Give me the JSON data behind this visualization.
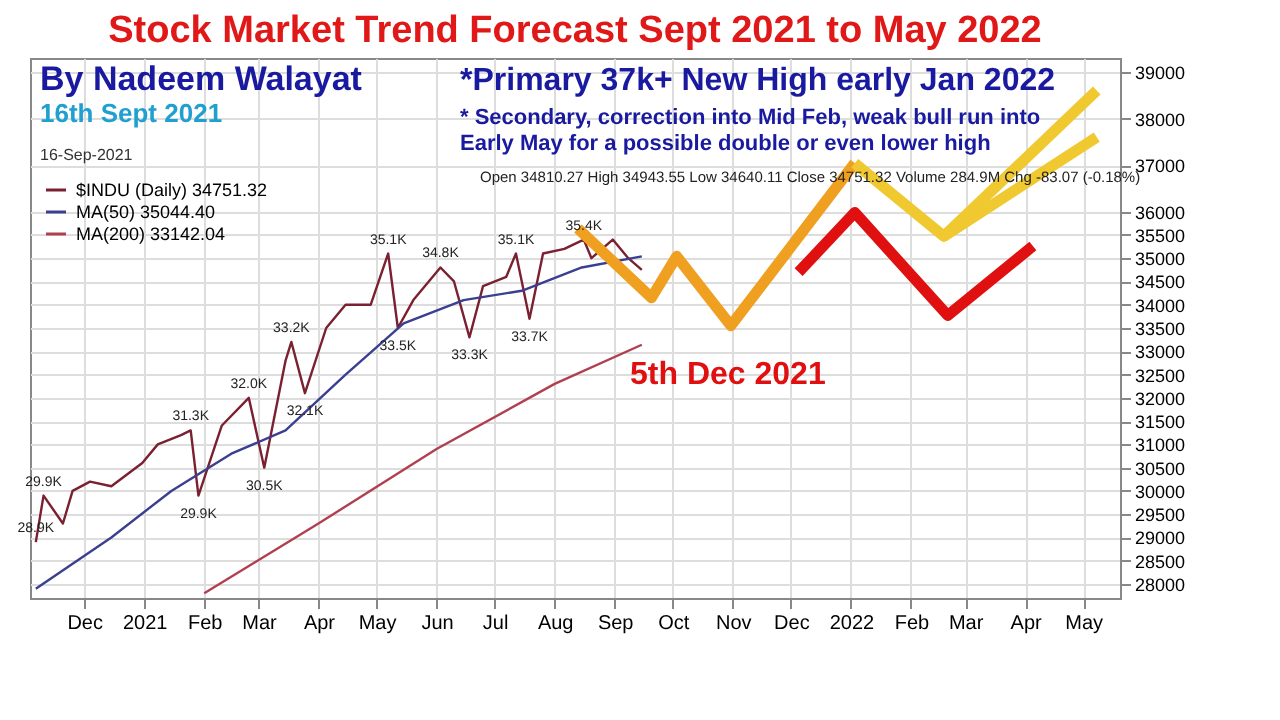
{
  "chart_data": {
    "type": "line",
    "title": "Stock Market Trend Forecast Sept 2021 to May 2022",
    "xlim": [
      "2020-11-03",
      "2022-05-20"
    ],
    "xticks": [
      {
        "value": "2020-12-01",
        "label": "Dec"
      },
      {
        "value": "2021-01-01",
        "label": "2021"
      },
      {
        "value": "2021-02-01",
        "label": "Feb"
      },
      {
        "value": "2021-03-01",
        "label": "Mar"
      },
      {
        "value": "2021-04-01",
        "label": "Apr"
      },
      {
        "value": "2021-05-01",
        "label": "May"
      },
      {
        "value": "2021-06-01",
        "label": "Jun"
      },
      {
        "value": "2021-07-01",
        "label": "Jul"
      },
      {
        "value": "2021-08-01",
        "label": "Aug"
      },
      {
        "value": "2021-09-01",
        "label": "Sep"
      },
      {
        "value": "2021-10-01",
        "label": "Oct"
      },
      {
        "value": "2021-11-01",
        "label": "Nov"
      },
      {
        "value": "2021-12-01",
        "label": "Dec"
      },
      {
        "value": "2022-01-01",
        "label": "2022"
      },
      {
        "value": "2022-02-01",
        "label": "Feb"
      },
      {
        "value": "2022-03-01",
        "label": "Mar"
      },
      {
        "value": "2022-04-01",
        "label": "Apr"
      },
      {
        "value": "2022-05-01",
        "label": "May"
      }
    ],
    "ylim": [
      27700,
      39300
    ],
    "yticks": [
      28000,
      28500,
      29000,
      29500,
      30000,
      30500,
      31000,
      31500,
      32000,
      32500,
      33000,
      33500,
      34000,
      34500,
      35000,
      35500,
      36000,
      37000,
      38000,
      39000
    ],
    "grid": true,
    "legend": "top left",
    "series": [
      {
        "name": "$INDU (Daily) 34751.32",
        "color": "#7a2030",
        "x": [
          "2020-11-06",
          "2020-11-10",
          "2020-11-20",
          "2020-11-25",
          "2020-12-04",
          "2020-12-15",
          "2020-12-31",
          "2021-01-08",
          "2021-01-20",
          "2021-01-25",
          "2021-01-29",
          "2021-02-10",
          "2021-02-24",
          "2021-03-04",
          "2021-03-15",
          "2021-03-18",
          "2021-03-25",
          "2021-04-05",
          "2021-04-15",
          "2021-04-28",
          "2021-05-07",
          "2021-05-12",
          "2021-05-20",
          "2021-06-03",
          "2021-06-10",
          "2021-06-18",
          "2021-06-25",
          "2021-07-07",
          "2021-07-12",
          "2021-07-19",
          "2021-07-26",
          "2021-08-06",
          "2021-08-16",
          "2021-08-20",
          "2021-08-31",
          "2021-09-08",
          "2021-09-15"
        ],
        "values": [
          28900,
          29900,
          29300,
          30000,
          30200,
          30100,
          30600,
          31000,
          31200,
          31300,
          29900,
          31400,
          32000,
          30500,
          32800,
          33200,
          32100,
          33500,
          34000,
          34000,
          35100,
          33500,
          34100,
          34800,
          34500,
          33300,
          34400,
          34600,
          35100,
          33700,
          35100,
          35200,
          35400,
          35000,
          35400,
          35000,
          34750
        ]
      },
      {
        "name": "MA(50) 35044.40",
        "color": "#3a3f8f",
        "x": [
          "2020-11-06",
          "2020-12-15",
          "2021-01-15",
          "2021-02-15",
          "2021-03-15",
          "2021-04-15",
          "2021-05-15",
          "2021-06-15",
          "2021-07-15",
          "2021-08-15",
          "2021-09-15"
        ],
        "values": [
          27900,
          29000,
          30000,
          30800,
          31300,
          32500,
          33600,
          34100,
          34300,
          34800,
          35040
        ]
      },
      {
        "name": "MA(200) 33142.04",
        "color": "#b04050",
        "x": [
          "2021-02-01",
          "2021-04-01",
          "2021-06-01",
          "2021-08-01",
          "2021-09-15"
        ],
        "values": [
          27800,
          29300,
          30900,
          32300,
          33140
        ]
      },
      {
        "color": "#f0a020",
        "x": [
          "2021-08-13",
          "2021-09-20",
          "2021-10-03",
          "2021-10-31",
          "2022-01-03"
        ],
        "values": [
          35640,
          34150,
          35040,
          33550,
          37040
        ]
      },
      {
        "color": "#f0c830",
        "x": [
          "2022-01-03",
          "2022-02-18",
          "2022-05-08"
        ],
        "values": [
          37040,
          35470,
          38600
        ]
      },
      {
        "color": "#f0c830",
        "x": [
          "2022-02-18",
          "2022-05-08"
        ],
        "values": [
          35470,
          37600
        ]
      },
      {
        "color": "#e01010",
        "x": [
          "2021-12-05",
          "2022-01-03",
          "2022-02-20",
          "2022-04-05"
        ],
        "values": [
          34700,
          35980,
          33770,
          35260
        ]
      }
    ],
    "annotations": [
      "By Nadeem Walayat",
      "16th Sept 2021",
      "*Primary 37k+ New High early Jan 2022",
      "* Secondary, correction into Mid Feb, weak bull run into Early May for a possible double or even lower high",
      "5th Dec 2021",
      "16-Sep-2021",
      "Open 34810.27 High 34943.55 Low 34640.11 Close 34751.32 Volume 284.9M Chg -83.07 (-0.18%)",
      {
        "text": "28.9K",
        "x": "2020-11-06",
        "y": 28900
      },
      {
        "text": "29.9K",
        "x": "2020-11-10",
        "y": 29900
      },
      {
        "text": "31.3K",
        "x": "2021-01-25",
        "y": 31300
      },
      {
        "text": "29.9K",
        "x": "2021-01-29",
        "y": 29900
      },
      {
        "text": "32.0K",
        "x": "2021-02-24",
        "y": 32000
      },
      {
        "text": "30.5K",
        "x": "2021-03-04",
        "y": 30500
      },
      {
        "text": "33.2K",
        "x": "2021-03-18",
        "y": 33200
      },
      {
        "text": "32.1K",
        "x": "2021-03-25",
        "y": 32100
      },
      {
        "text": "35.1K",
        "x": "2021-05-07",
        "y": 35100
      },
      {
        "text": "33.5K",
        "x": "2021-05-12",
        "y": 33500
      },
      {
        "text": "34.8K",
        "x": "2021-06-03",
        "y": 34800
      },
      {
        "text": "33.3K",
        "x": "2021-06-18",
        "y": 33300
      },
      {
        "text": "35.1K",
        "x": "2021-07-12",
        "y": 35100
      },
      {
        "text": "33.7K",
        "x": "2021-07-19",
        "y": 33700
      },
      {
        "text": "35.4K",
        "x": "2021-08-16",
        "y": 35400
      }
    ]
  }
}
